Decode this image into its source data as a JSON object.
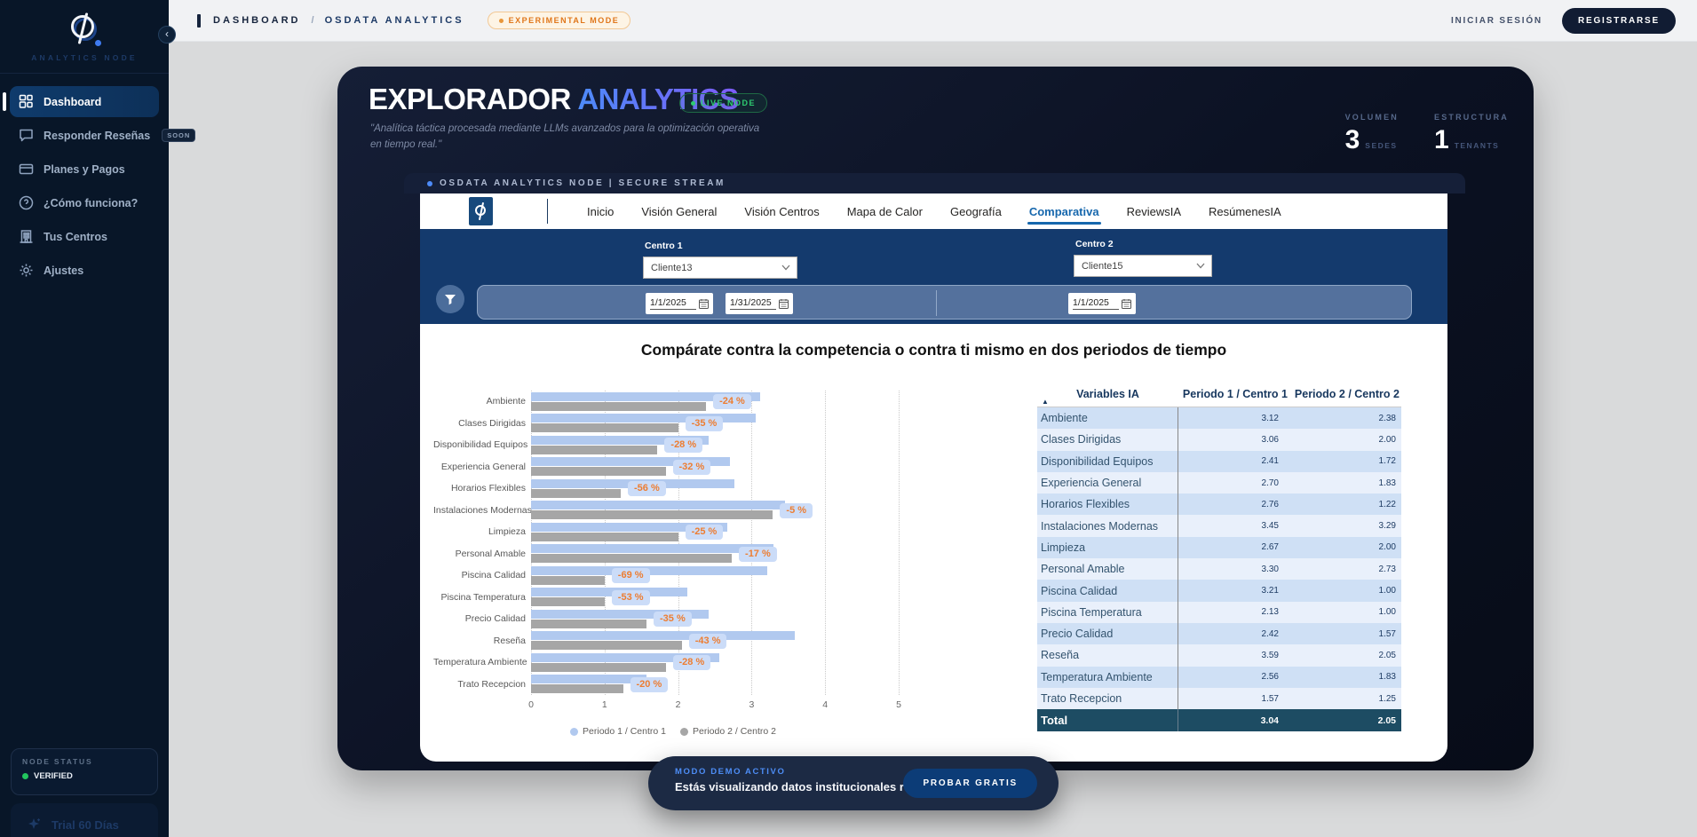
{
  "sidebar": {
    "brand": "ANALYTICS NODE",
    "items": [
      {
        "label": "Dashboard",
        "icon": "dashboard-icon",
        "active": true
      },
      {
        "label": "Responder Reseñas",
        "icon": "chat-icon",
        "badge": "SOON"
      },
      {
        "label": "Planes y Pagos",
        "icon": "card-icon"
      },
      {
        "label": "¿Cómo funciona?",
        "icon": "help-icon"
      },
      {
        "label": "Tus Centros",
        "icon": "building-icon"
      },
      {
        "label": "Ajustes",
        "icon": "gear-icon"
      }
    ],
    "node_status_label": "NODE STATUS",
    "node_status_value": "VERIFIED",
    "trial_label": "Trial 60 Días"
  },
  "topbar": {
    "breadcrumb_a": "DASHBOARD",
    "breadcrumb_sep": "/",
    "breadcrumb_b": "OSDATA ANALYTICS",
    "experimental_badge": "EXPERIMENTAL MODE",
    "login_label": "INICIAR SESIÓN",
    "register_label": "REGISTRARSE"
  },
  "hero": {
    "title_primary": "EXPLORADOR",
    "title_accent": "ANALYTICS",
    "live_badge": "LIVE NODE",
    "subtitle": "\"Analítica táctica procesada mediante LLMs avanzados para la optimización operativa en tiempo real.\"",
    "stats": [
      {
        "label": "VOLUMEN",
        "value": "3",
        "suffix": "SEDES"
      },
      {
        "label": "ESTRUCTURA",
        "value": "1",
        "suffix": "TENANTS"
      }
    ],
    "stream_text": "OSDATA ANALYTICS NODE | SECURE STREAM"
  },
  "report": {
    "tabs": [
      {
        "label": "Inicio"
      },
      {
        "label": "Visión General"
      },
      {
        "label": "Visión Centros"
      },
      {
        "label": "Mapa de Calor"
      },
      {
        "label": "Geografía"
      },
      {
        "label": "Comparativa",
        "active": true
      },
      {
        "label": "ReviewsIA"
      },
      {
        "label": "ResúmenesIA"
      }
    ],
    "filters": {
      "centro1_label": "Centro 1",
      "centro1_value": "Cliente13",
      "centro2_label": "Centro 2",
      "centro2_value": "Cliente15",
      "period1_start": "1/1/2025",
      "period1_end": "1/31/2025",
      "period2_start": "1/1/2025"
    },
    "chart_title": "Compárate contra la competencia o contra ti mismo en dos periodos de tiempo"
  },
  "chart_data": {
    "type": "bar",
    "orientation": "horizontal",
    "title": "Compárate contra la competencia o contra ti mismo en dos periodos de tiempo",
    "categories": [
      "Ambiente",
      "Clases Dirigidas",
      "Disponibilidad Equipos",
      "Experiencia General",
      "Horarios Flexibles",
      "Instalaciones Modernas",
      "Limpieza",
      "Personal Amable",
      "Piscina Calidad",
      "Piscina Temperatura",
      "Precio Calidad",
      "Reseña",
      "Temperatura Ambiente",
      "Trato Recepcion"
    ],
    "series": [
      {
        "name": "Periodo 1 / Centro 1",
        "color": "#b1c9ef",
        "values": [
          3.12,
          3.06,
          2.41,
          2.7,
          2.76,
          3.45,
          2.67,
          3.3,
          3.21,
          2.13,
          2.42,
          3.59,
          2.56,
          1.57
        ]
      },
      {
        "name": "Periodo 2 / Centro 2",
        "color": "#a6a6a6",
        "values": [
          2.38,
          2.0,
          1.72,
          1.83,
          1.22,
          3.29,
          2.0,
          2.73,
          1.0,
          1.0,
          1.57,
          2.05,
          1.83,
          1.25
        ]
      }
    ],
    "delta_labels": [
      "-24 %",
      "-35 %",
      "-28 %",
      "-32 %",
      "-56 %",
      "-5 %",
      "-25 %",
      "-17 %",
      "-69 %",
      "-53 %",
      "-35 %",
      "-43 %",
      "-28 %",
      "-20 %"
    ],
    "delta_color": "#ed7d31",
    "xlim": [
      0,
      5
    ],
    "ticks": [
      0,
      1,
      2,
      3,
      4,
      5
    ],
    "grid": "dotted-vertical",
    "legend_position": "bottom"
  },
  "table": {
    "columns": [
      "Variables IA",
      "Periodo 1 / Centro 1",
      "Periodo 2 / Centro 2"
    ],
    "rows": [
      [
        "Ambiente",
        "3.12",
        "2.38"
      ],
      [
        "Clases Dirigidas",
        "3.06",
        "2.00"
      ],
      [
        "Disponibilidad Equipos",
        "2.41",
        "1.72"
      ],
      [
        "Experiencia General",
        "2.70",
        "1.83"
      ],
      [
        "Horarios Flexibles",
        "2.76",
        "1.22"
      ],
      [
        "Instalaciones Modernas",
        "3.45",
        "3.29"
      ],
      [
        "Limpieza",
        "2.67",
        "2.00"
      ],
      [
        "Personal Amable",
        "3.30",
        "2.73"
      ],
      [
        "Piscina Calidad",
        "3.21",
        "1.00"
      ],
      [
        "Piscina Temperatura",
        "2.13",
        "1.00"
      ],
      [
        "Precio Calidad",
        "2.42",
        "1.57"
      ],
      [
        "Reseña",
        "3.59",
        "2.05"
      ],
      [
        "Temperatura Ambiente",
        "2.56",
        "1.83"
      ],
      [
        "Trato Recepcion",
        "1.57",
        "1.25"
      ]
    ],
    "total": [
      "Total",
      "3.04",
      "2.05"
    ]
  },
  "toast": {
    "tag": "MODO DEMO ACTIVO",
    "message": "Estás visualizando datos institucionales reales.",
    "button_label": "PROBAR GRATIS"
  },
  "colors": {
    "sidebar_bg": "#081628",
    "panel_bg": "#0b1122",
    "accent_blue": "#4d8bf8",
    "accent_purple": "#7e5bf7",
    "live_green": "#2ecc71",
    "experimental_orange": "#e0761a",
    "filter_panel_blue": "#143a6d",
    "table_total_bg": "#1d4c63",
    "bar_blue": "#b1c9ef",
    "bar_gray": "#a6a6a6",
    "delta_orange": "#ed7d31"
  }
}
